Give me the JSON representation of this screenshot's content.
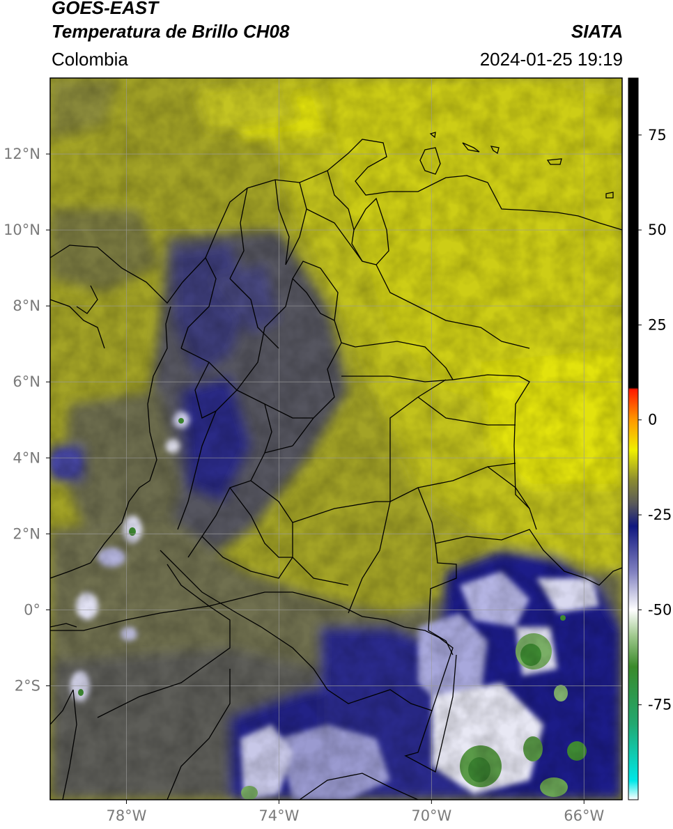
{
  "header": {
    "satellite": "GOES-EAST",
    "product": "Temperatura de Brillo CH08",
    "region": "Colombia",
    "organization": "SIATA",
    "datetime": "2024-01-25 19:19"
  },
  "map": {
    "lon_range": [
      -80,
      -65
    ],
    "lat_range": [
      -5,
      14
    ],
    "lon_ticks": [
      {
        "value": -78,
        "label": "78°W"
      },
      {
        "value": -74,
        "label": "74°W"
      },
      {
        "value": -70,
        "label": "70°W"
      },
      {
        "value": -66,
        "label": "66°W"
      }
    ],
    "lat_ticks": [
      {
        "value": 12,
        "label": "12°N"
      },
      {
        "value": 10,
        "label": "10°N"
      },
      {
        "value": 8,
        "label": "8°N"
      },
      {
        "value": 6,
        "label": "6°N"
      },
      {
        "value": 4,
        "label": "4°N"
      },
      {
        "value": 2,
        "label": "2°N"
      },
      {
        "value": 0,
        "label": "0°"
      },
      {
        "value": -2,
        "label": "2°S"
      }
    ],
    "gridlines": true
  },
  "colorbar": {
    "range": [
      -100,
      90
    ],
    "ticks": [
      {
        "value": 75,
        "label": "75"
      },
      {
        "value": 50,
        "label": "50"
      },
      {
        "value": 25,
        "label": "25"
      },
      {
        "value": 0,
        "label": "0"
      },
      {
        "value": -25,
        "label": "-25"
      },
      {
        "value": -50,
        "label": "-50"
      },
      {
        "value": -75,
        "label": "-75"
      }
    ],
    "color_stops": [
      {
        "value": -100,
        "color": "#ffffff"
      },
      {
        "value": -95,
        "color": "#00e8e8"
      },
      {
        "value": -80,
        "color": "#22a870"
      },
      {
        "value": -65,
        "color": "#3a8a2a"
      },
      {
        "value": -57,
        "color": "#9ec88c"
      },
      {
        "value": -50,
        "color": "#ffffff"
      },
      {
        "value": -40,
        "color": "#8080c0"
      },
      {
        "value": -28,
        "color": "#101880"
      },
      {
        "value": -22,
        "color": "#5a5a5a"
      },
      {
        "value": -16,
        "color": "#8a8a30"
      },
      {
        "value": -8,
        "color": "#f0f000"
      },
      {
        "value": 0,
        "color": "#ff9900"
      },
      {
        "value": 8,
        "color": "#ff1a00"
      },
      {
        "value": 8.5,
        "color": "#000000"
      },
      {
        "value": 90,
        "color": "#000000"
      }
    ]
  }
}
